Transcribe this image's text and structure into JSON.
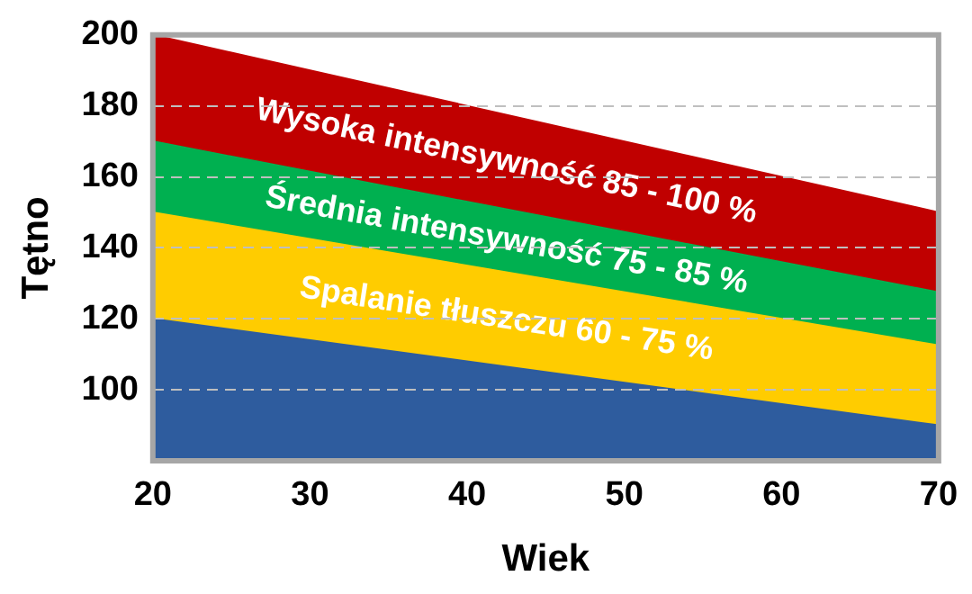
{
  "chart_data": {
    "type": "area",
    "xlabel": "Wiek",
    "ylabel": "Tętno",
    "x": [
      20,
      70
    ],
    "xlim": [
      20,
      70
    ],
    "xticks": [
      20,
      30,
      40,
      50,
      60,
      70
    ],
    "ylim": [
      80,
      200
    ],
    "yticks": [
      100,
      120,
      140,
      160,
      180,
      200
    ],
    "grid": "y",
    "line_style": "dashed",
    "legend": false,
    "marker": "none",
    "series": [
      {
        "color": "#2e5c9e",
        "values": [
          120,
          90
        ]
      },
      {
        "name": "Spalanie tłuszczu 60 - 75 %",
        "color": "#ffcc00",
        "values": [
          150,
          112.5
        ]
      },
      {
        "name": "Średnia intensywność 75 - 85 %",
        "color": "#00b050",
        "values": [
          170,
          127.5
        ]
      },
      {
        "name": "Wysoka intensywność 85 - 100 %",
        "color": "#c00000",
        "values": [
          200,
          150
        ]
      }
    ]
  }
}
